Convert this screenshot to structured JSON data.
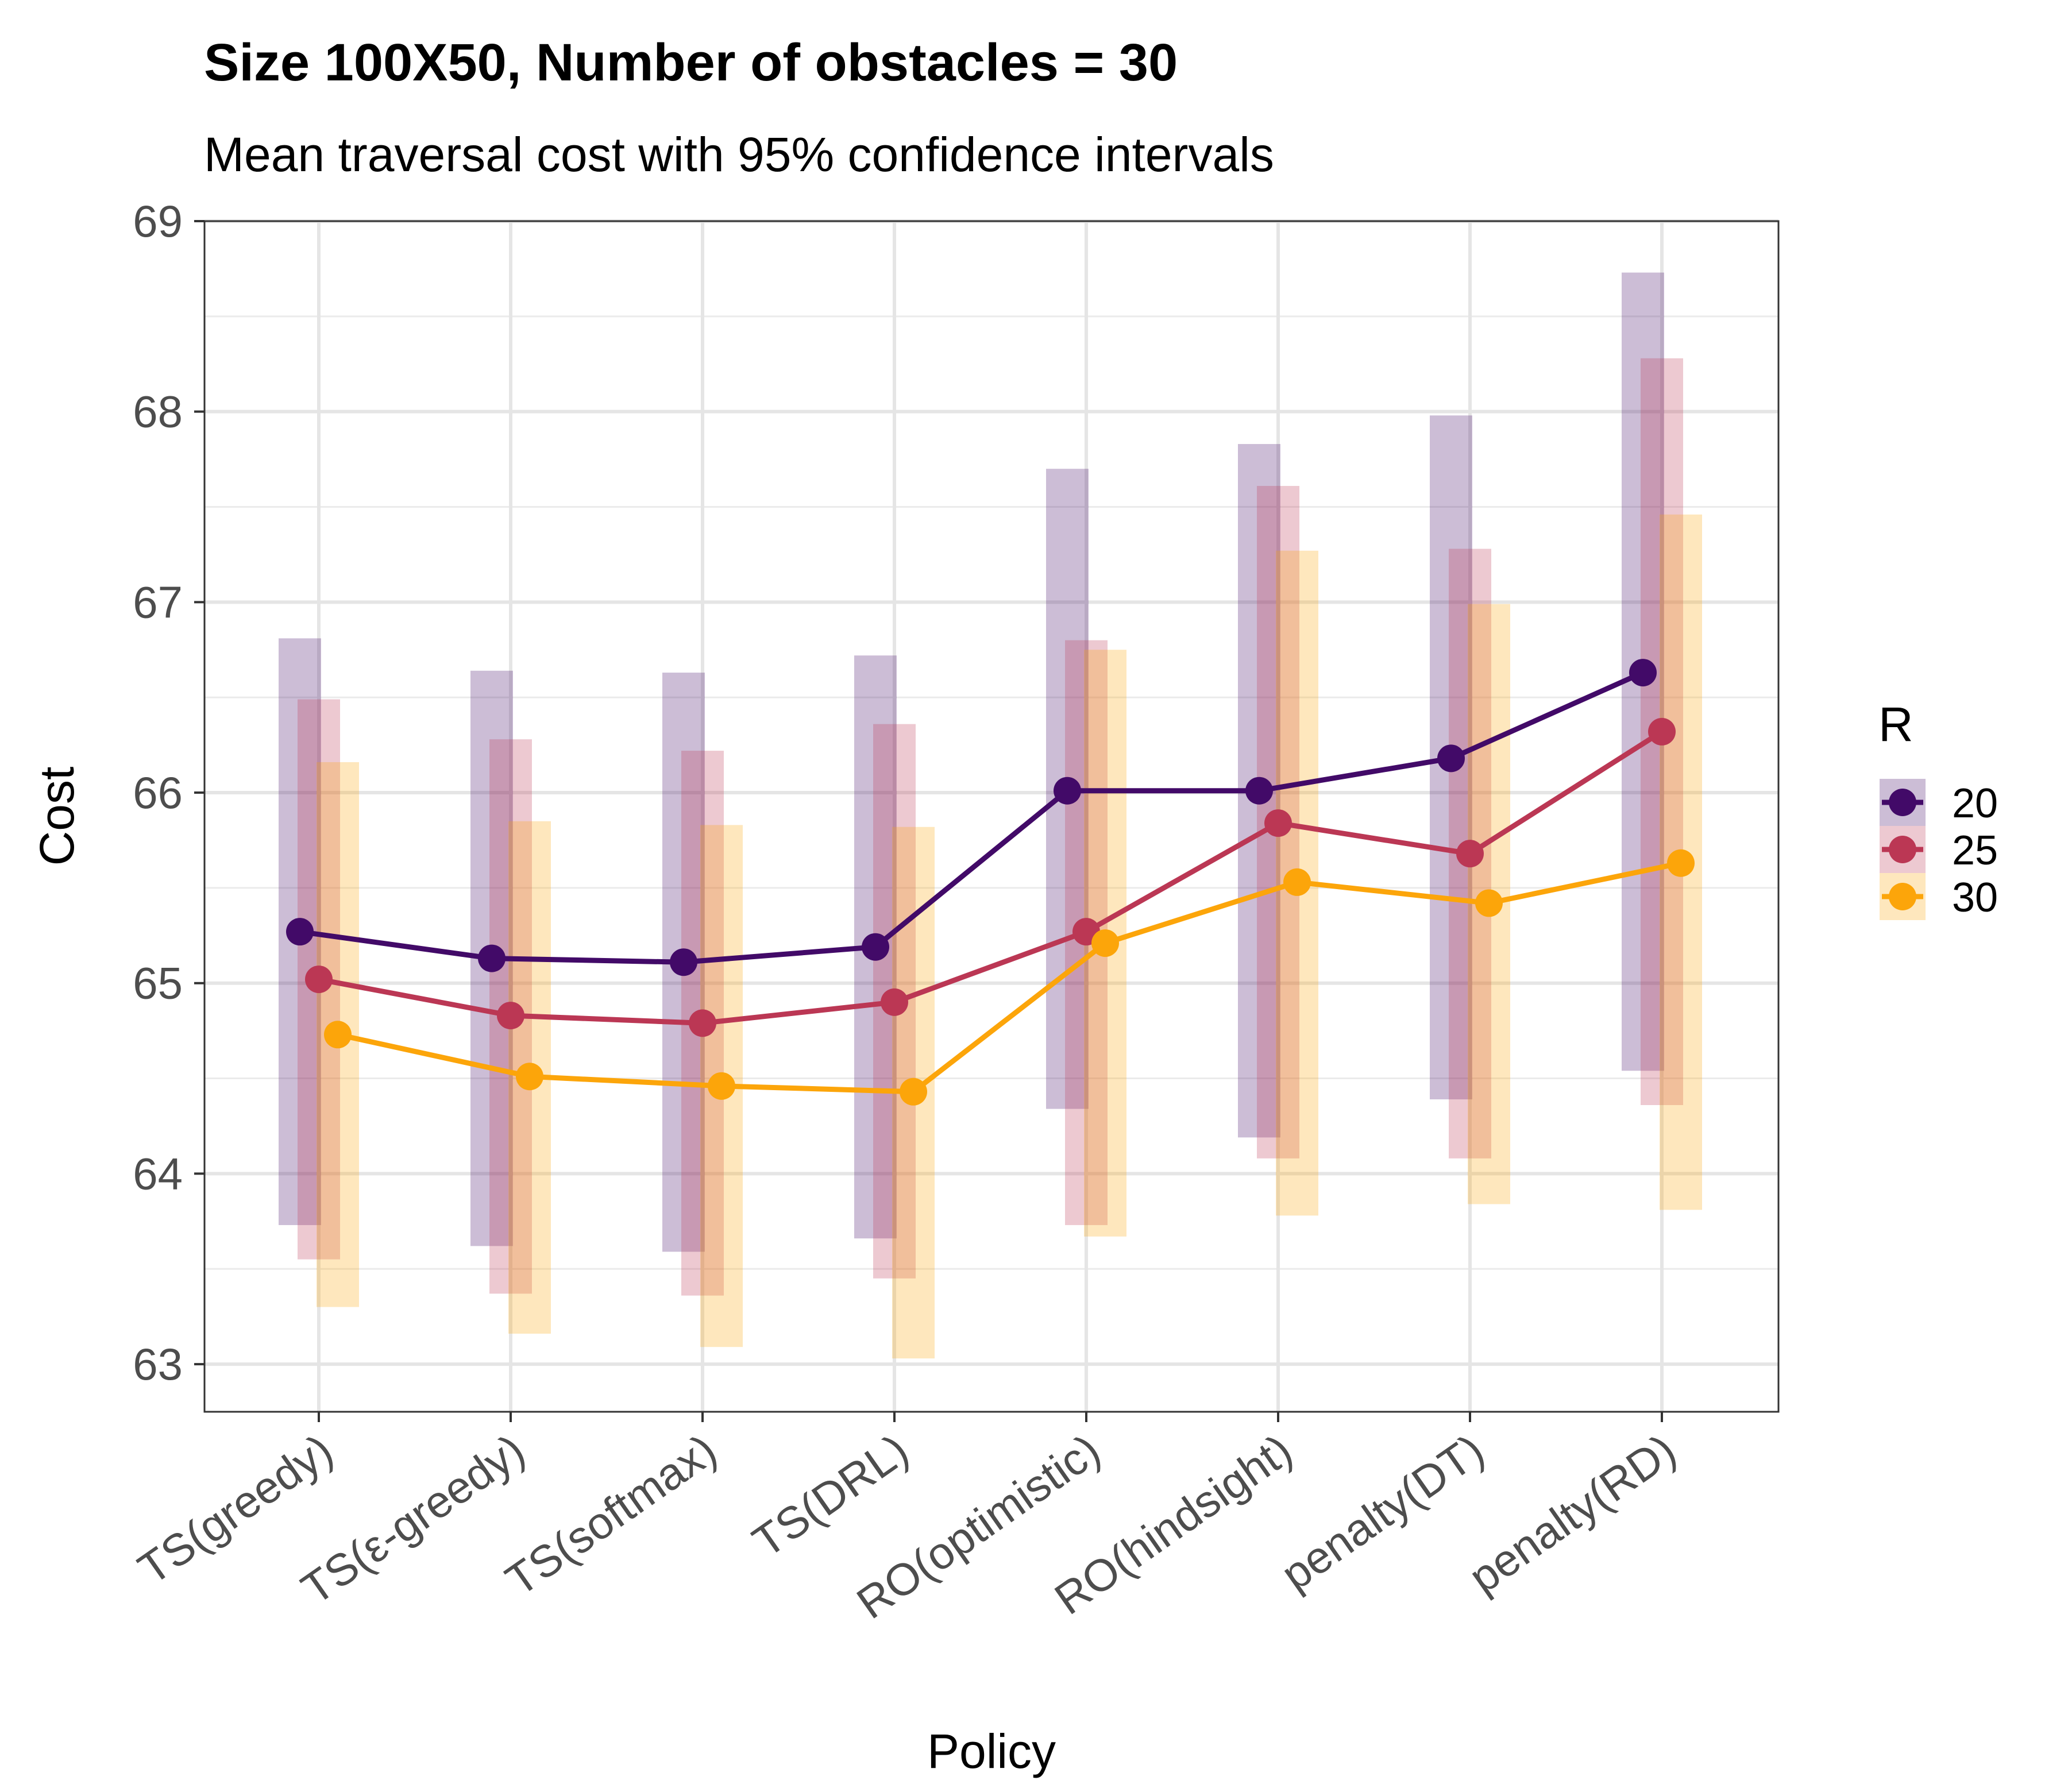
{
  "chart_data": {
    "type": "line",
    "title": "Size 100X50, Number of obstacles = 30",
    "subtitle": "Mean traversal cost with 95% confidence intervals",
    "xlabel": "Policy",
    "ylabel": "Cost",
    "ylim": [
      62.75,
      69
    ],
    "yticks": [
      63,
      64,
      65,
      66,
      67,
      68,
      69
    ],
    "grid": true,
    "legend": {
      "title": "R",
      "position": "right"
    },
    "categories": [
      "TS(greedy)",
      "TS(ε-greedy)",
      "TS(softmax)",
      "TS(DRL)",
      "RO(optimistic)",
      "RO(hindsight)",
      "penalty(DT)",
      "penalty(RD)"
    ],
    "series": [
      {
        "name": "20",
        "color": "#420a68",
        "values": [
          65.27,
          65.13,
          65.11,
          65.19,
          66.01,
          66.01,
          66.18,
          66.63
        ],
        "lower": [
          63.73,
          63.62,
          63.59,
          63.66,
          64.34,
          64.19,
          64.39,
          64.54
        ],
        "upper": [
          66.81,
          66.64,
          66.63,
          66.72,
          67.7,
          67.83,
          67.98,
          68.73
        ]
      },
      {
        "name": "25",
        "color": "#bb3754",
        "values": [
          65.02,
          64.83,
          64.79,
          64.9,
          65.27,
          65.84,
          65.68,
          66.32
        ],
        "lower": [
          63.55,
          63.37,
          63.36,
          63.45,
          63.73,
          64.08,
          64.08,
          64.36
        ],
        "upper": [
          66.49,
          66.28,
          66.22,
          66.36,
          66.8,
          67.61,
          67.28,
          68.28
        ]
      },
      {
        "name": "30",
        "color": "#fca50a",
        "values": [
          64.73,
          64.51,
          64.46,
          64.43,
          65.21,
          65.53,
          65.42,
          65.63
        ],
        "lower": [
          63.3,
          63.16,
          63.09,
          63.03,
          63.67,
          63.78,
          63.84,
          63.81
        ],
        "upper": [
          66.16,
          65.85,
          65.83,
          65.82,
          66.75,
          67.27,
          66.99,
          67.46
        ]
      }
    ]
  }
}
